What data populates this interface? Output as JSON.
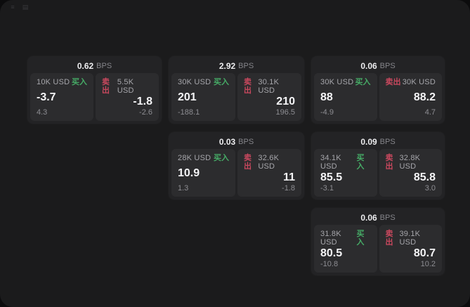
{
  "labels": {
    "buy": "买入",
    "sell": "卖出",
    "bps": "BPS"
  },
  "colors": {
    "buy_green": "#46ab66",
    "sell_red": "#c9485e",
    "window_bg": "#1b1b1c",
    "card_bg": "#232325",
    "panel_bg": "#2c2c2e"
  },
  "topbar": {
    "icons": [
      {
        "name": "menu-icon",
        "glyph": "≡"
      },
      {
        "name": "panel-icon",
        "glyph": "▤"
      }
    ]
  },
  "cards": [
    {
      "bps": "0.62",
      "buy": {
        "amount": "10K USD",
        "price": "-3.7",
        "delta": "4.3"
      },
      "sell": {
        "amount": "5.5K USD",
        "price": "-1.8",
        "delta": "-2.6"
      }
    },
    {
      "bps": "2.92",
      "buy": {
        "amount": "30K USD",
        "price": "201",
        "delta": "-188.1"
      },
      "sell": {
        "amount": "30.1K USD",
        "price": "210",
        "delta": "196.5"
      }
    },
    {
      "bps": "0.06",
      "buy": {
        "amount": "30K USD",
        "price": "88",
        "delta": "-4.9"
      },
      "sell": {
        "amount": "30K USD",
        "price": "88.2",
        "delta": "4.7"
      }
    },
    {
      "bps": "0.03",
      "buy": {
        "amount": "28K USD",
        "price": "10.9",
        "delta": "1.3"
      },
      "sell": {
        "amount": "32.6K USD",
        "price": "11",
        "delta": "-1.8"
      }
    },
    {
      "bps": "0.09",
      "buy": {
        "amount": "34.1K USD",
        "price": "85.5",
        "delta": "-3.1"
      },
      "sell": {
        "amount": "32.8K USD",
        "price": "85.8",
        "delta": "3.0"
      }
    },
    {
      "bps": "0.06",
      "buy": {
        "amount": "31.8K USD",
        "price": "80.5",
        "delta": "-10.8"
      },
      "sell": {
        "amount": "39.1K USD",
        "price": "80.7",
        "delta": "10.2"
      }
    }
  ]
}
